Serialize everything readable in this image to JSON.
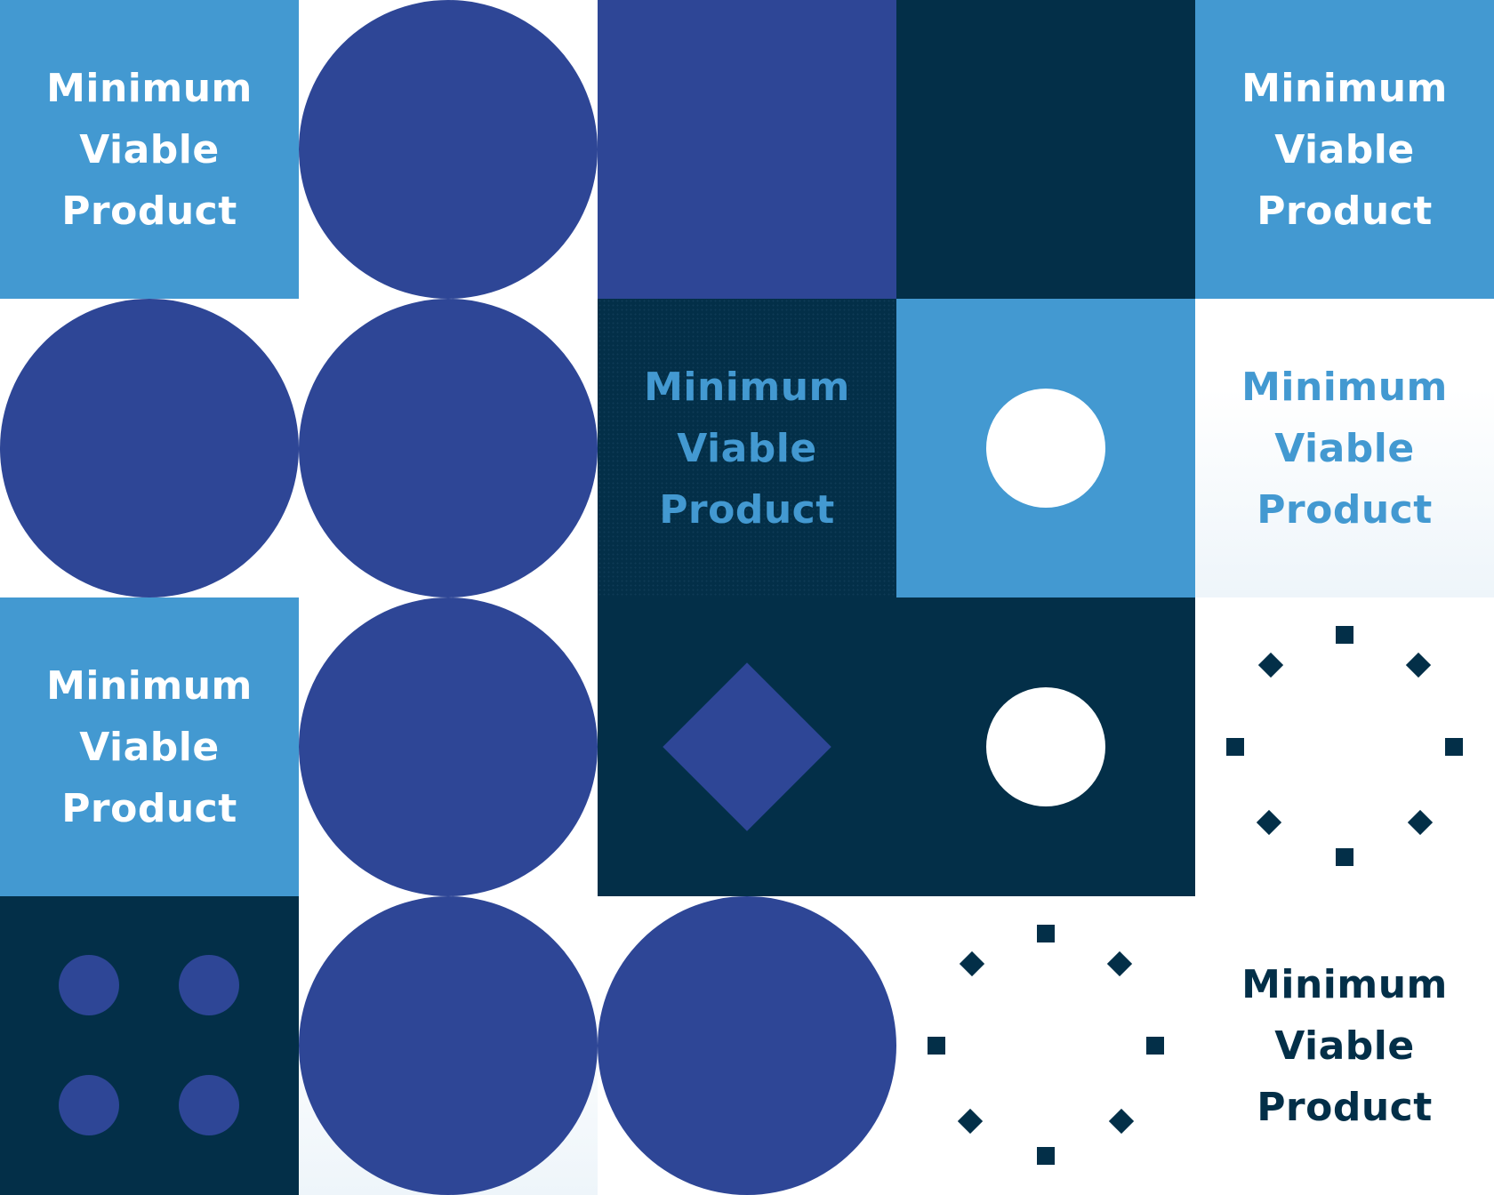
{
  "tile_text": {
    "line1": "Minimum",
    "line2": "Viable",
    "line3": "Product"
  },
  "colors": {
    "light_blue": "#4399d1",
    "navy": "#032f48",
    "royal_blue": "#2e4696",
    "white": "#ffffff"
  },
  "shapes": [
    "circle",
    "square",
    "diamond",
    "dot-ring",
    "dot-grid"
  ]
}
